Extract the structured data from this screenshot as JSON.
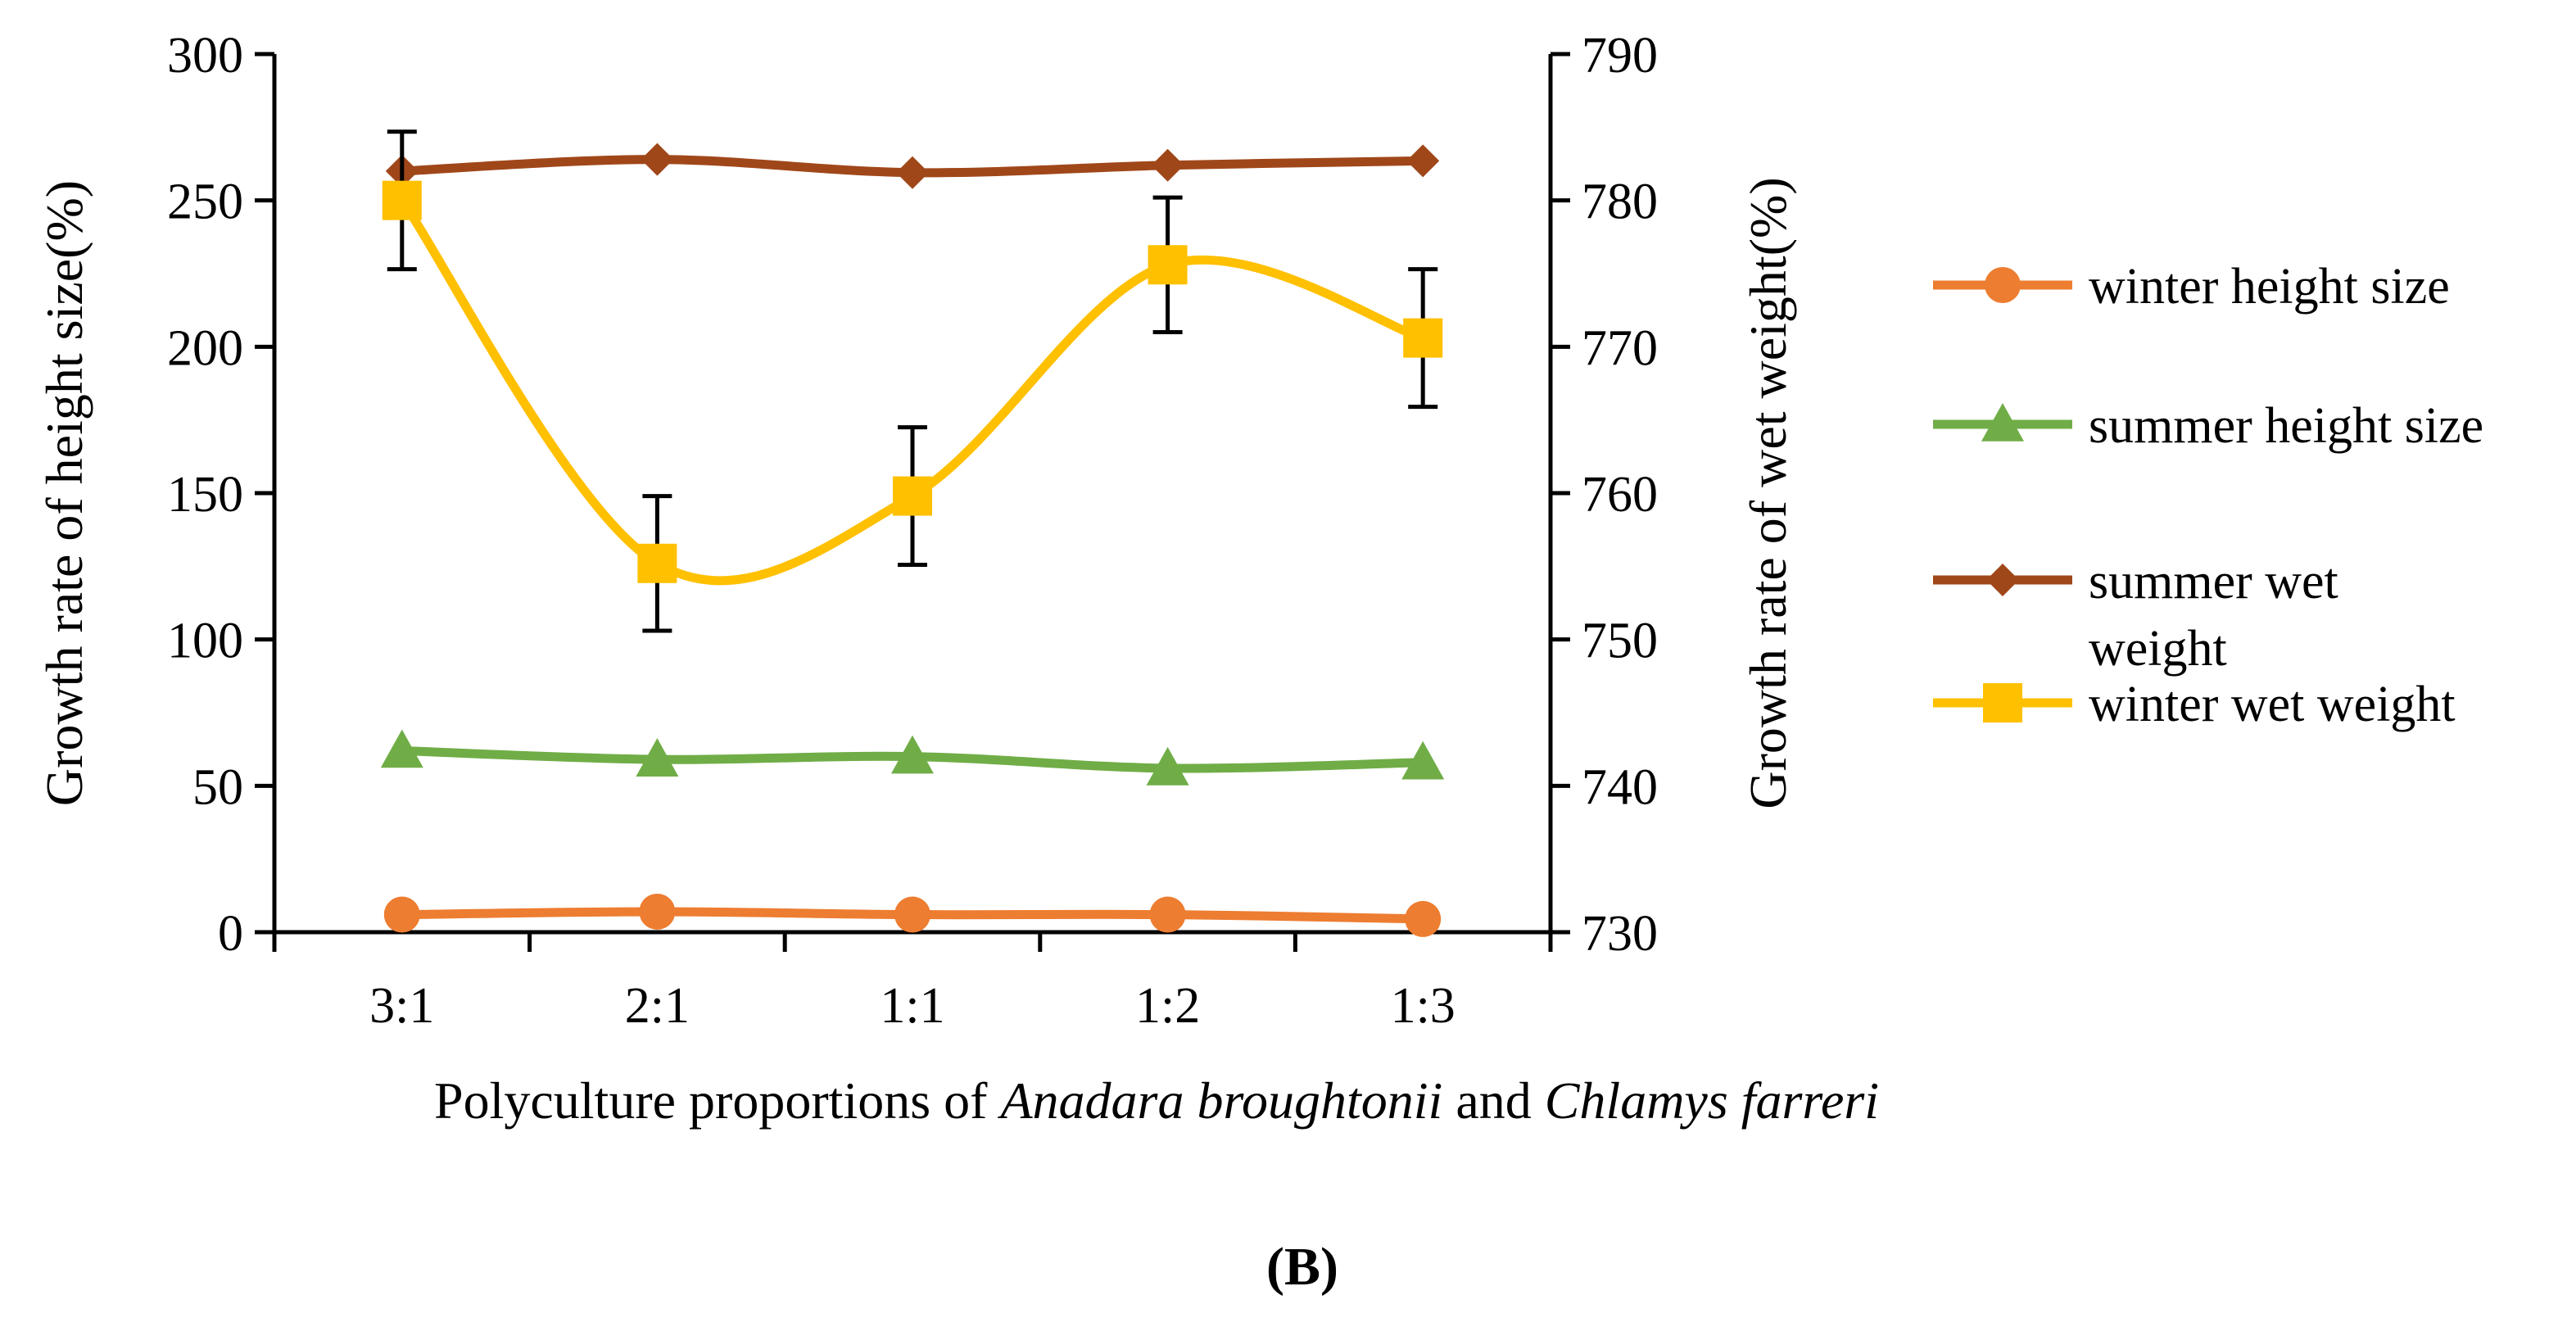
{
  "chart_data": {
    "type": "line",
    "categories": [
      "3:1",
      "2:1",
      "1:1",
      "1:2",
      "1:3"
    ],
    "x_axis": {
      "label_parts": [
        {
          "text": "Polyculture proportions of ",
          "italic": false
        },
        {
          "text": "Anadara broughtonii",
          "italic": true
        },
        {
          "text": " and ",
          "italic": false
        },
        {
          "text": "Chlamys farreri",
          "italic": true
        }
      ]
    },
    "y_left": {
      "label": "Growth rate of height size(%)",
      "range": [
        0,
        300
      ],
      "ticks": [
        0,
        50,
        100,
        150,
        200,
        250,
        300
      ]
    },
    "y_right": {
      "label": "Growth rate of wet weight(%)",
      "range": [
        730,
        790
      ],
      "ticks": [
        730,
        740,
        750,
        760,
        770,
        780,
        790
      ]
    },
    "series": [
      {
        "name": "winter height size",
        "axis": "left",
        "color": "#ED7D31",
        "marker": "circle",
        "smooth": false,
        "values": [
          6,
          7,
          6,
          6,
          4.5
        ],
        "errors": [
          0,
          0,
          0,
          0,
          0
        ]
      },
      {
        "name": "summer height size",
        "axis": "left",
        "color": "#70AD47",
        "marker": "triangle",
        "smooth": false,
        "values": [
          62,
          59,
          60,
          56,
          58
        ],
        "errors": [
          0,
          0,
          0,
          0,
          0
        ]
      },
      {
        "name": "summer wet weight",
        "axis": "right",
        "color": "#A0471A",
        "marker": "diamond",
        "smooth": false,
        "values": [
          782,
          782.8,
          781.9,
          782.4,
          782.7
        ],
        "errors": [
          0,
          0,
          0,
          0,
          0
        ]
      },
      {
        "name": "winter wet weight",
        "axis": "right",
        "color": "#FFC000",
        "marker": "square",
        "smooth": true,
        "values": [
          780,
          755.2,
          759.8,
          775.6,
          770.6
        ],
        "errors": [
          4.7,
          4.6,
          4.7,
          4.6,
          4.7
        ]
      }
    ],
    "legend": {
      "position": "right",
      "lines": [
        [
          "winter height size"
        ],
        [
          "summer height size"
        ],
        [
          "summer wet",
          "weight"
        ],
        [
          "winter wet weight"
        ]
      ]
    },
    "panel_label": "(B)"
  }
}
